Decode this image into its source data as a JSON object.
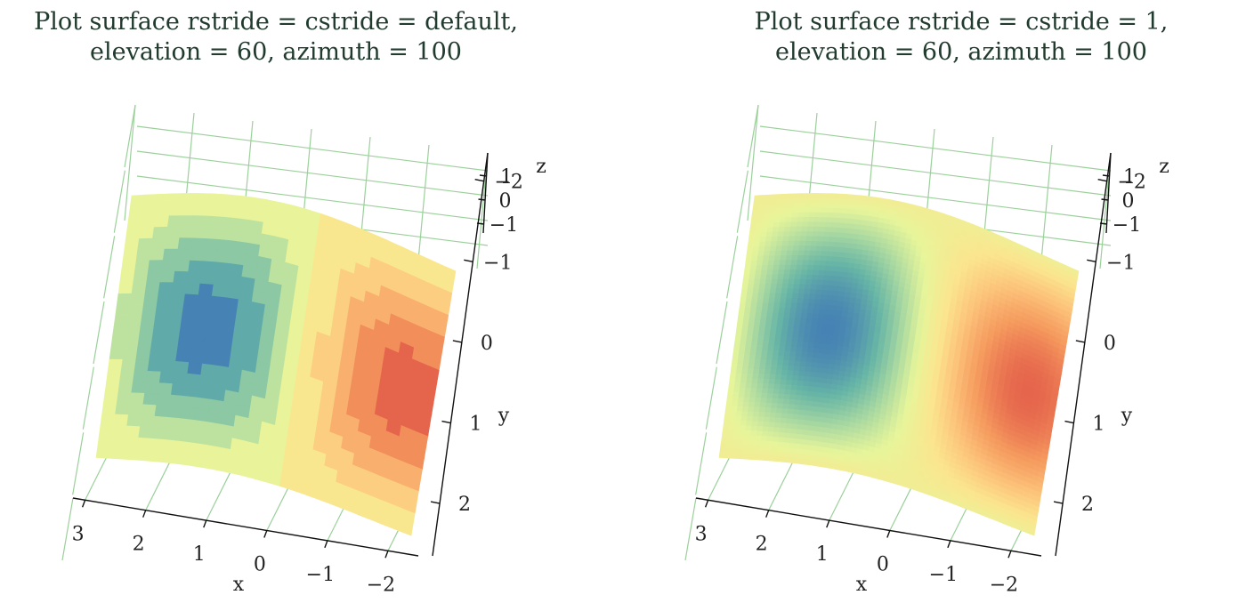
{
  "charts": [
    {
      "title_line1": "Plot surface rstride = cstride = default,",
      "title_line2": "elevation = 60, azimuth = 100",
      "rstride": "default",
      "cstride": "default",
      "elevation": 60,
      "azimuth": 100
    },
    {
      "title_line1": "Plot surface rstride = cstride = 1,",
      "title_line2": "elevation = 60, azimuth = 100",
      "rstride": 1,
      "cstride": 1,
      "elevation": 60,
      "azimuth": 100
    }
  ],
  "chart_data": [
    {
      "type": "surface3d",
      "title": "Plot surface rstride = cstride = default, elevation = 60, azimuth = 100",
      "xlabel": "x",
      "ylabel": "y",
      "zlabel": "z",
      "x_ticks": [
        "3",
        "2",
        "1",
        "0",
        "−1",
        "−2"
      ],
      "y_ticks": [
        "−2",
        "−1",
        "0",
        "1",
        "2"
      ],
      "z_ticks": [
        "1",
        "0",
        "−1"
      ],
      "x_tick_values": [
        3,
        2,
        1,
        0,
        -1,
        -2
      ],
      "y_tick_values": [
        -2,
        -1,
        0,
        1,
        2
      ],
      "z_tick_values": [
        1,
        0,
        -1
      ],
      "xlim": [
        -2,
        3
      ],
      "ylim": [
        -2,
        2
      ],
      "zlim": [
        -1,
        1
      ],
      "colormap": "Spectral",
      "grid": true,
      "shading": "coarse"
    },
    {
      "type": "surface3d",
      "title": "Plot surface rstride = cstride = 1, elevation = 60, azimuth = 100",
      "xlabel": "x",
      "ylabel": "y",
      "zlabel": "z",
      "x_ticks": [
        "3",
        "2",
        "1",
        "0",
        "−1",
        "−2"
      ],
      "y_ticks": [
        "−2",
        "−1",
        "0",
        "1",
        "2"
      ],
      "z_ticks": [
        "1",
        "0",
        "−1"
      ],
      "x_tick_values": [
        3,
        2,
        1,
        0,
        -1,
        -2
      ],
      "y_tick_values": [
        -2,
        -1,
        0,
        1,
        2
      ],
      "z_tick_values": [
        1,
        0,
        -1
      ],
      "xlim": [
        -2,
        3
      ],
      "ylim": [
        -2,
        2
      ],
      "zlim": [
        -1,
        1
      ],
      "colormap": "Spectral",
      "grid": true,
      "shading": "fine"
    }
  ],
  "colors": {
    "grid": "#9bd09b",
    "axis": "#111111",
    "spectral": [
      "#4682b4",
      "#67b5a6",
      "#a8d8a1",
      "#e7f59a",
      "#fbe58e",
      "#fcc27a",
      "#f59a5e",
      "#e5654c"
    ]
  }
}
